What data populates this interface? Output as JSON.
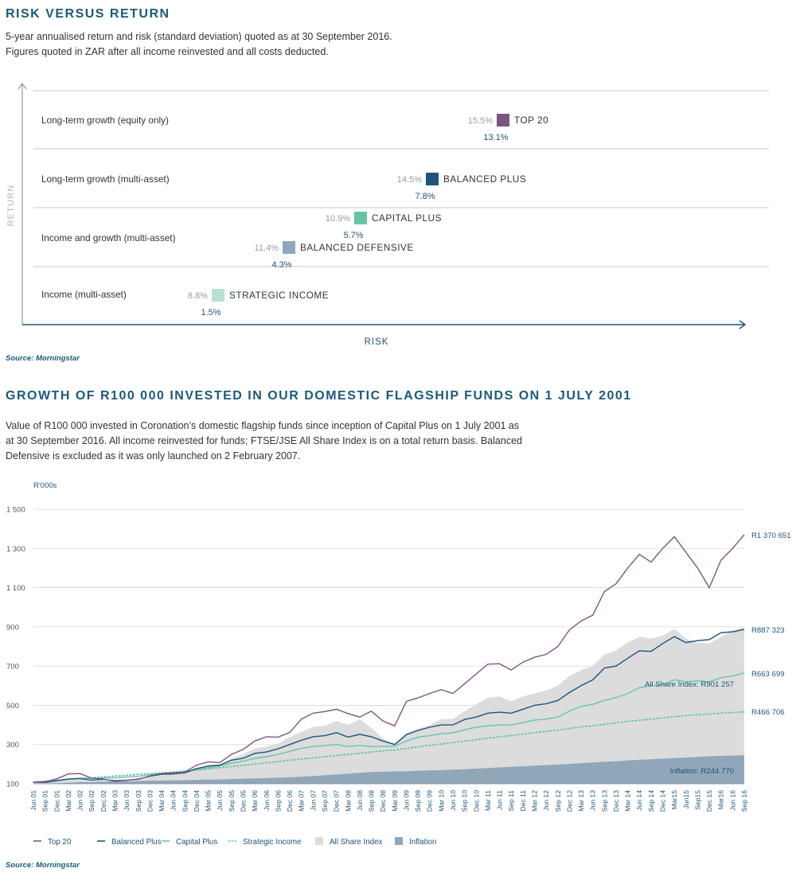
{
  "risk_section": {
    "title": "RISK VERSUS RETURN",
    "desc_line1": "5-year annualised return and risk (standard deviation) quoted as at 30 September 2016.",
    "desc_line2": "Figures quoted in ZAR after all income reinvested and all costs deducted.",
    "source": "Source: Morningstar"
  },
  "growth_section": {
    "title": "GROWTH OF R100 000 INVESTED IN OUR DOMESTIC FLAGSHIP FUNDS ON 1 JULY 2001",
    "desc_line1": "Value of R100 000 invested in Coronation’s domestic flagship funds since inception of Capital Plus on 1 July 2001 as",
    "desc_line2": "at 30 September 2016. All income reinvested for funds; FTSE/JSE All Share Index is on a total return basis. Balanced",
    "desc_line3": "Defensive is excluded as it was only launched on 2 February 2007.",
    "source": "Source: Morningstar"
  },
  "chart_data": [
    {
      "type": "scatter",
      "xlabel": "RISK",
      "ylabel": "RETURN",
      "categories": [
        "Long-term growth (equity only)",
        "Long-term growth (multi-asset)",
        "Income and growth (multi-asset)",
        "Income (multi-asset)"
      ],
      "points": [
        {
          "name": "TOP 20",
          "category": "Long-term growth (equity only)",
          "risk": "15.5%",
          "return": "13.1%",
          "color": "#7e5484"
        },
        {
          "name": "BALANCED PLUS",
          "category": "Long-term growth (multi-asset)",
          "risk": "14.5%",
          "return": "7.8%",
          "color": "#1d5577"
        },
        {
          "name": "CAPITAL PLUS",
          "category": "Income and growth (multi-asset)",
          "risk": "10.9%",
          "return": "5.7%",
          "color": "#66c4a8"
        },
        {
          "name": "BALANCED DEFENSIVE",
          "category": "Income and growth (multi-asset)",
          "risk": "11.4%",
          "return": "4.3%",
          "color": "#8fa7bd"
        },
        {
          "name": "STRATEGIC INCOME",
          "category": "Income (multi-asset)",
          "risk": "8.8%",
          "return": "1.5%",
          "color": "#b5e2d6"
        }
      ]
    },
    {
      "type": "line",
      "ylabel": "R'000s",
      "ylim": [
        100,
        1500
      ],
      "yticks": [
        "1 500",
        "1 300",
        "1 100",
        "900",
        "700",
        "500",
        "300",
        "100"
      ],
      "xticks": [
        "Jun 01",
        "Sep 01",
        "Dec 01",
        "Mar 02",
        "Jun 02",
        "Sep 02",
        "Dec 02",
        "Mar 03",
        "Jun 03",
        "Sep 03",
        "Dec 03",
        "Mar 04",
        "Jun 04",
        "Sep 04",
        "Dec 04",
        "Mar 05",
        "Jun 05",
        "Sep 05",
        "Dec 05",
        "Mar 06",
        "Jun 06",
        "Sep 06",
        "Dec 06",
        "Mar 07",
        "Jun 07",
        "Sep 07",
        "Dec 07",
        "Mar 08",
        "Jun 08",
        "Sep 08",
        "Dec 08",
        "Mar 09",
        "Jun 09",
        "Sep 09",
        "Dec 09",
        "Mar 10",
        "Jun 10",
        "Sep 10",
        "Dec 10",
        "Mar 11",
        "Jun 11",
        "Sep 11",
        "Dec 11",
        "Mar 12",
        "Jun 12",
        "Sep 12",
        "Dec 12",
        "Mar 13",
        "Jun 13",
        "Sep 13",
        "Dec 13",
        "Mar 14",
        "Jun 14",
        "Sep 14",
        "Dec 14",
        "Mar15",
        "Jun15",
        "Sep15",
        "Dec 15",
        "Mar16",
        "Jun 16",
        "Sep 16"
      ],
      "series": [
        {
          "name": "Top 20",
          "style": "line",
          "color": "#7e5484",
          "label": "R1 370 651",
          "values": [
            108,
            110,
            125,
            150,
            152,
            128,
            124,
            112,
            118,
            122,
            140,
            152,
            156,
            160,
            195,
            212,
            208,
            250,
            275,
            318,
            340,
            338,
            362,
            430,
            460,
            468,
            480,
            458,
            440,
            470,
            420,
            395,
            520,
            538,
            560,
            580,
            560,
            610,
            660,
            710,
            712,
            680,
            720,
            745,
            760,
            800,
            885,
            930,
            960,
            1080,
            1120,
            1200,
            1270,
            1230,
            1300,
            1360,
            1280,
            1200,
            1100,
            1240,
            1300,
            1371
          ]
        },
        {
          "name": "Balanced Plus",
          "style": "line",
          "color": "#1d5577",
          "label": "R887 323",
          "values": [
            108,
            107,
            115,
            124,
            126,
            118,
            122,
            116,
            118,
            124,
            138,
            148,
            150,
            156,
            178,
            190,
            195,
            220,
            230,
            255,
            262,
            278,
            300,
            322,
            340,
            345,
            360,
            338,
            352,
            340,
            318,
            300,
            350,
            372,
            388,
            400,
            400,
            428,
            440,
            460,
            465,
            460,
            480,
            500,
            508,
            525,
            565,
            600,
            630,
            690,
            700,
            740,
            778,
            775,
            815,
            850,
            820,
            830,
            835,
            870,
            875,
            887
          ]
        },
        {
          "name": "Capital Plus",
          "style": "line",
          "color": "#66c4a8",
          "label": "R663 699",
          "values": [
            108,
            112,
            118,
            124,
            128,
            126,
            130,
            130,
            134,
            138,
            146,
            152,
            156,
            160,
            172,
            182,
            190,
            205,
            215,
            230,
            238,
            250,
            265,
            280,
            290,
            295,
            300,
            290,
            295,
            290,
            290,
            292,
            318,
            338,
            345,
            355,
            360,
            375,
            388,
            395,
            400,
            400,
            412,
            425,
            430,
            440,
            470,
            495,
            505,
            525,
            540,
            560,
            590,
            600,
            605,
            630,
            620,
            625,
            620,
            640,
            650,
            664
          ]
        },
        {
          "name": "Strategic Income",
          "style": "dotted",
          "color": "#66c4a8",
          "label": "R466 706",
          "values": [
            108,
            112,
            117,
            122,
            127,
            131,
            135,
            139,
            143,
            148,
            152,
            156,
            160,
            165,
            170,
            176,
            182,
            188,
            194,
            200,
            207,
            213,
            220,
            226,
            232,
            238,
            244,
            250,
            255,
            262,
            268,
            272,
            280,
            288,
            296,
            303,
            310,
            318,
            325,
            332,
            340,
            346,
            353,
            360,
            367,
            374,
            382,
            390,
            396,
            403,
            410,
            418,
            424,
            430,
            436,
            442,
            448,
            452,
            455,
            460,
            463,
            467
          ]
        },
        {
          "name": "All Share Index",
          "style": "area",
          "color": "#dcdcdc",
          "label": "All Share Index: R901 257",
          "values": [
            108,
            106,
            112,
            118,
            120,
            110,
            112,
            104,
            110,
            118,
            134,
            142,
            148,
            155,
            178,
            196,
            200,
            230,
            250,
            280,
            290,
            305,
            338,
            365,
            390,
            395,
            420,
            400,
            430,
            385,
            330,
            300,
            360,
            380,
            400,
            430,
            430,
            470,
            505,
            540,
            545,
            520,
            545,
            560,
            575,
            600,
            650,
            680,
            700,
            760,
            780,
            820,
            850,
            840,
            855,
            890,
            840,
            820,
            815,
            850,
            880,
            901
          ]
        },
        {
          "name": "Inflation",
          "style": "area",
          "color": "#8fa7b8",
          "label": "Inflation: R244 770",
          "values": [
            100,
            101,
            103,
            105,
            108,
            110,
            112,
            113,
            114,
            114,
            115,
            116,
            117,
            118,
            120,
            121,
            122,
            124,
            125,
            127,
            129,
            131,
            133,
            136,
            139,
            143,
            147,
            151,
            156,
            160,
            162,
            163,
            164,
            166,
            168,
            170,
            172,
            174,
            177,
            180,
            183,
            186,
            189,
            192,
            195,
            198,
            201,
            205,
            208,
            212,
            215,
            219,
            222,
            225,
            228,
            231,
            234,
            237,
            240,
            242,
            244,
            245
          ]
        }
      ]
    }
  ]
}
